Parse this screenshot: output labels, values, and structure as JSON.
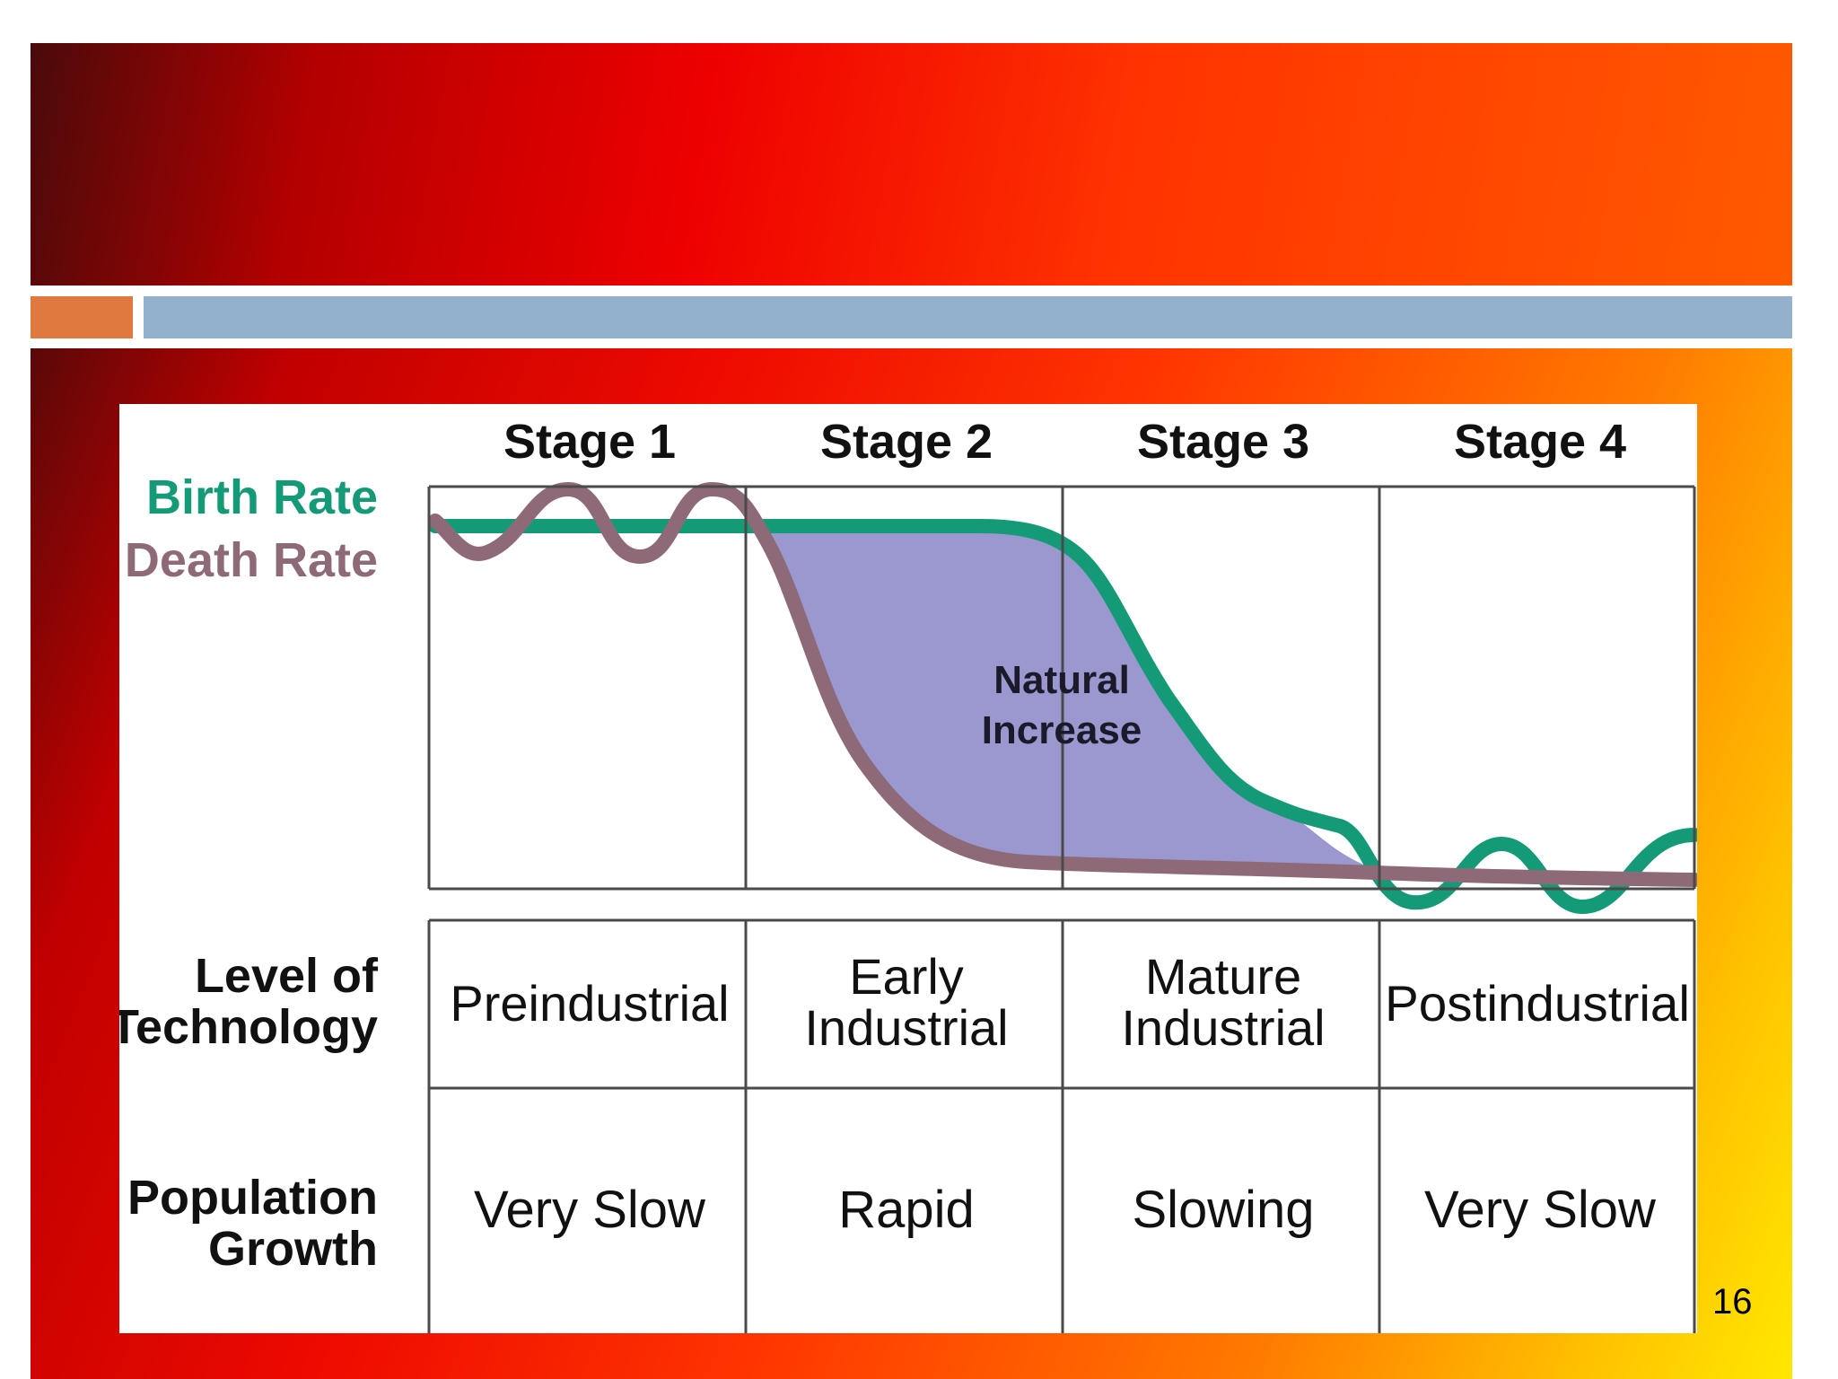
{
  "diagram": {
    "stages": [
      "Stage 1",
      "Stage 2",
      "Stage 3",
      "Stage 4"
    ],
    "legend": {
      "birth_rate": "Birth Rate",
      "death_rate": "Death Rate"
    },
    "area_label_line1": "Natural",
    "area_label_line2": "Increase",
    "rows": [
      {
        "label_line1": "Level of",
        "label_line2": "Technology",
        "values": [
          [
            "Preindustrial"
          ],
          [
            "Early",
            "Industrial"
          ],
          [
            "Mature",
            "Industrial"
          ],
          [
            "Postindustrial"
          ]
        ]
      },
      {
        "label_line1": "Population",
        "label_line2": "Growth",
        "values": [
          [
            "Very Slow"
          ],
          [
            "Rapid"
          ],
          [
            "Slowing"
          ],
          [
            "Very Slow"
          ]
        ]
      }
    ]
  },
  "colors": {
    "birth_rate": "#159a78",
    "death_rate": "#8e6a78",
    "natural_increase": "#9b98cf",
    "grid": "#4a4a4a"
  },
  "slide": {
    "page_number": "16"
  }
}
